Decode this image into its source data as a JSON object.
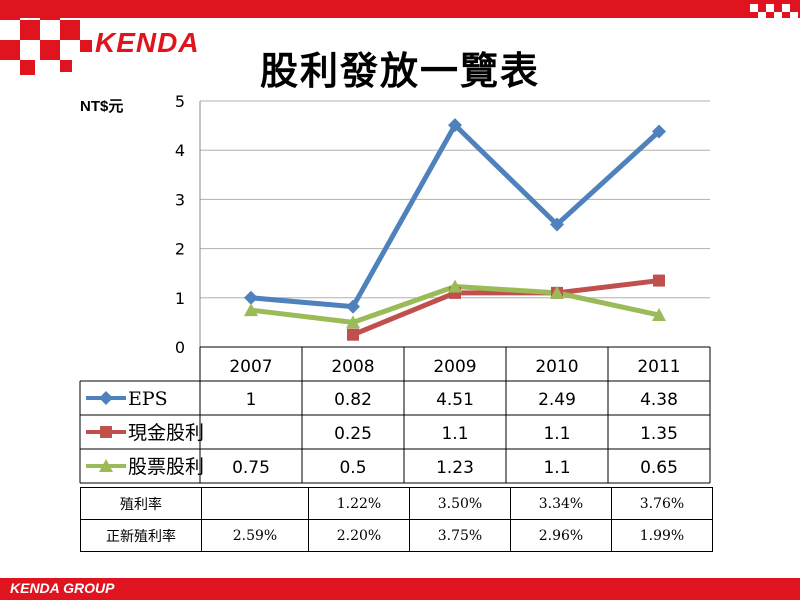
{
  "header": {
    "logo_text": "KENDA",
    "title": "股利發放一覽表"
  },
  "footer": {
    "group_text": "KENDA GROUP"
  },
  "colors": {
    "brand_red": "#e0141e",
    "eps": "#4f81bd",
    "cash": "#c0504d",
    "stock": "#9bbb59"
  },
  "chart_data": {
    "type": "line",
    "ylabel": "NT$元",
    "ylim": [
      0,
      5
    ],
    "yticks": [
      "0",
      "1",
      "2",
      "3",
      "4",
      "5"
    ],
    "grid": true,
    "categories": [
      "2007",
      "2008",
      "2009",
      "2010",
      "2011"
    ],
    "series": [
      {
        "name": "EPS",
        "values": [
          1,
          0.82,
          4.51,
          2.49,
          4.38
        ],
        "labels": [
          "1",
          "0.82",
          "4.51",
          "2.49",
          "4.38"
        ],
        "marker": "diamond"
      },
      {
        "name": "現金股利",
        "values": [
          null,
          0.25,
          1.1,
          1.1,
          1.35
        ],
        "labels": [
          "",
          "0.25",
          "1.1",
          "1.1",
          "1.35"
        ],
        "marker": "square"
      },
      {
        "name": "股票股利",
        "values": [
          0.75,
          0.5,
          1.23,
          1.1,
          0.65
        ],
        "labels": [
          "0.75",
          "0.5",
          "1.23",
          "1.1",
          "0.65"
        ],
        "marker": "triangle"
      }
    ]
  },
  "yield_table": {
    "rows": [
      {
        "label": "殖利率",
        "values": [
          "",
          "1.22%",
          "3.50%",
          "3.34%",
          "3.76%"
        ]
      },
      {
        "label": "正新殖利率",
        "values": [
          "2.59%",
          "2.20%",
          "3.75%",
          "2.96%",
          "1.99%"
        ]
      }
    ]
  }
}
